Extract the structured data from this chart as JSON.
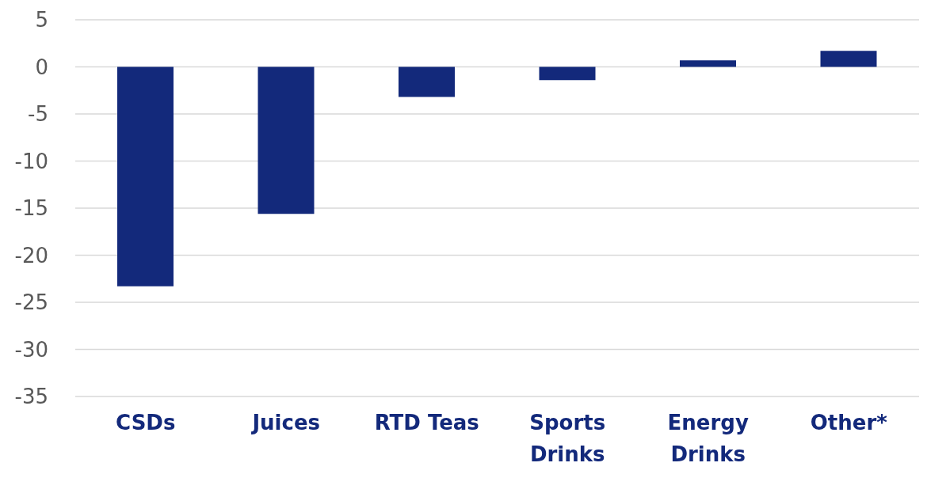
{
  "chart_data": {
    "type": "bar",
    "categories": [
      "CSDs",
      "Juices",
      "RTD Teas",
      "Sports Drinks",
      "Energy Drinks",
      "Other*"
    ],
    "values": [
      -23.3,
      -15.6,
      -3.2,
      -1.4,
      0.7,
      1.7
    ],
    "color": "#13297b",
    "ylim": [
      -35,
      5
    ],
    "yticks": [
      -35,
      -30,
      -25,
      -20,
      -15,
      -10,
      -5,
      0,
      5
    ],
    "grid": "y"
  }
}
